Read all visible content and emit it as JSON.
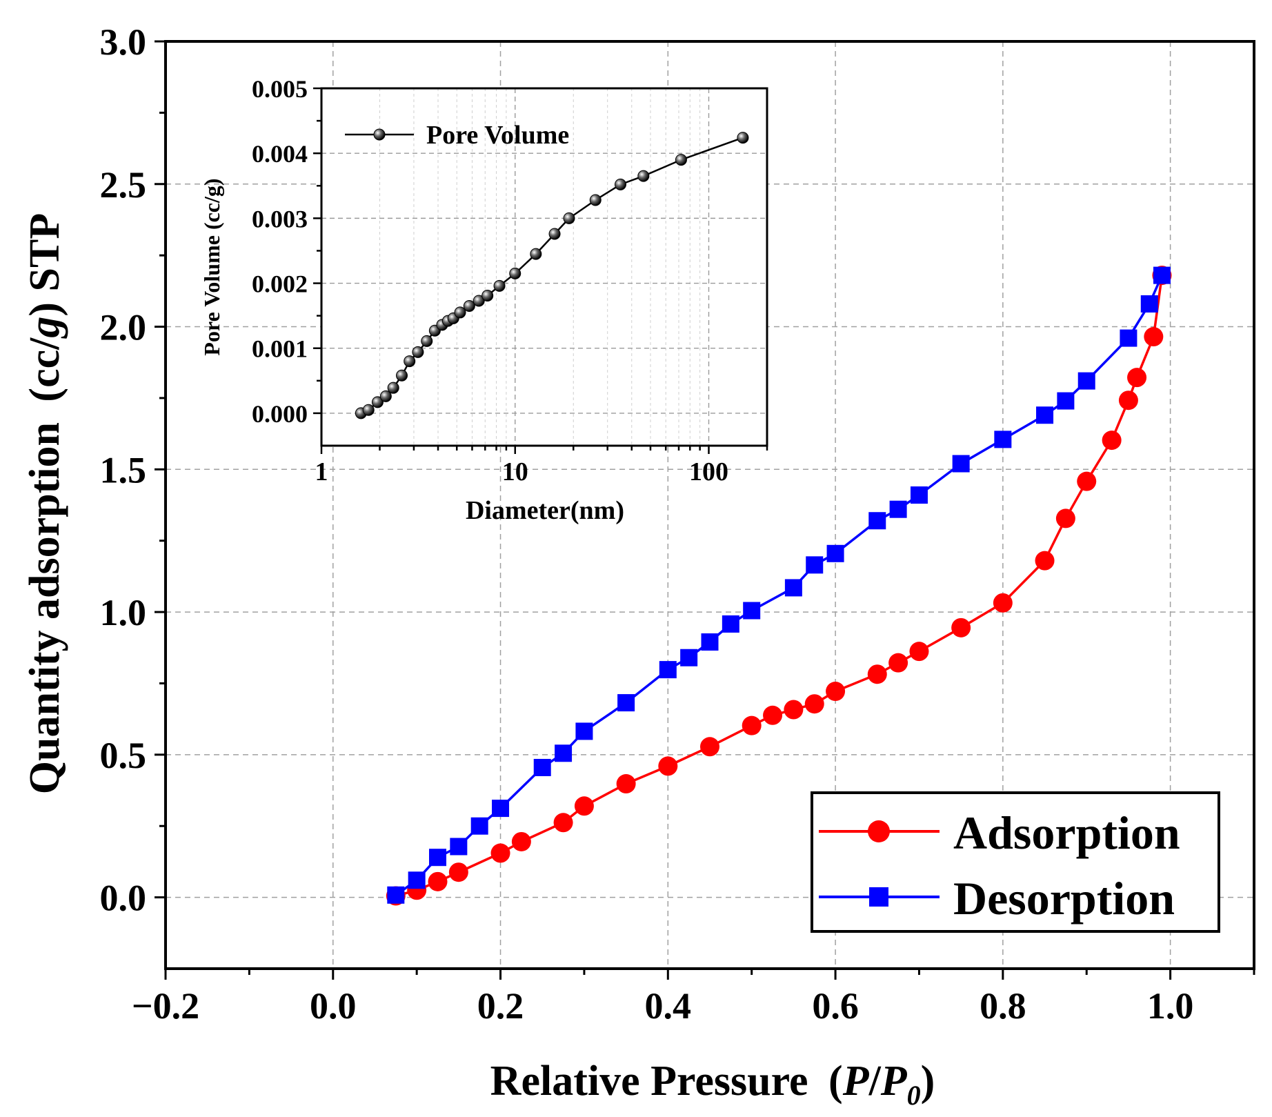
{
  "chart_data": [
    {
      "type": "line",
      "xlabel": "Relative Pressure",
      "xlabel_math": {
        "open": "(",
        "p": "P",
        "slash": "/",
        "p0": "P",
        "sub": "0",
        "close": ")"
      },
      "ylabel": "Quantity adsorption",
      "ylabel_math": {
        "open": "(cc/",
        "g": "g",
        "close": ") STP"
      },
      "xlim": [
        -0.2,
        1.1
      ],
      "ylim": [
        -0.25,
        3.0
      ],
      "grid": true,
      "xticks": [
        -0.2,
        0.0,
        0.2,
        0.4,
        0.6,
        0.8,
        1.0
      ],
      "xtick_labels": [
        "−0.2",
        "0.0",
        "0.2",
        "0.4",
        "0.6",
        "0.8",
        "1.0"
      ],
      "yticks": [
        0.0,
        0.5,
        1.0,
        1.5,
        2.0,
        2.5,
        3.0
      ],
      "ytick_labels": [
        "0.0",
        "0.5",
        "1.0",
        "1.5",
        "2.0",
        "2.5",
        "3.0"
      ],
      "legend_position": "bottom-right",
      "series": [
        {
          "name": "Adsorption",
          "color": "#ff0000",
          "marker": "circle",
          "x": [
            0.075,
            0.1,
            0.125,
            0.15,
            0.2,
            0.225,
            0.275,
            0.3,
            0.35,
            0.4,
            0.45,
            0.5,
            0.525,
            0.55,
            0.575,
            0.6,
            0.65,
            0.675,
            0.7,
            0.75,
            0.8,
            0.85,
            0.875,
            0.9,
            0.93,
            0.95,
            0.96,
            0.98,
            0.99
          ],
          "y": [
            0.005,
            0.025,
            0.055,
            0.088,
            0.155,
            0.195,
            0.262,
            0.32,
            0.398,
            0.46,
            0.528,
            0.602,
            0.638,
            0.658,
            0.678,
            0.722,
            0.782,
            0.822,
            0.862,
            0.945,
            1.032,
            1.18,
            1.328,
            1.458,
            1.602,
            1.742,
            1.822,
            1.965,
            2.18
          ]
        },
        {
          "name": "Desorption",
          "color": "#0000ff",
          "marker": "square",
          "x": [
            0.075,
            0.1,
            0.125,
            0.15,
            0.175,
            0.2,
            0.25,
            0.275,
            0.3,
            0.35,
            0.4,
            0.425,
            0.45,
            0.475,
            0.5,
            0.55,
            0.575,
            0.6,
            0.65,
            0.675,
            0.7,
            0.75,
            0.8,
            0.85,
            0.875,
            0.9,
            0.95,
            0.975,
            0.99
          ],
          "y": [
            0.008,
            0.06,
            0.14,
            0.178,
            0.25,
            0.312,
            0.455,
            0.505,
            0.582,
            0.682,
            0.798,
            0.84,
            0.895,
            0.958,
            1.005,
            1.085,
            1.165,
            1.205,
            1.32,
            1.36,
            1.41,
            1.52,
            1.605,
            1.69,
            1.74,
            1.81,
            1.96,
            2.08,
            2.18
          ]
        }
      ]
    },
    {
      "type": "line",
      "xlabel": "Diameter(nm)",
      "ylabel": "Pore Volume (cc/g)",
      "xscale": "log",
      "xlim": [
        1,
        200
      ],
      "ylim": [
        -0.0005,
        0.005
      ],
      "grid": true,
      "xticks": [
        1,
        10,
        100
      ],
      "xtick_labels": [
        "1",
        "10",
        "100"
      ],
      "yticks": [
        0.0,
        0.001,
        0.002,
        0.003,
        0.004,
        0.005
      ],
      "ytick_labels": [
        "0.000",
        "0.001",
        "0.002",
        "0.003",
        "0.004",
        "0.005"
      ],
      "legend_position": "top-left",
      "series": [
        {
          "name": "Pore Volume",
          "color": "#000000",
          "marker": "sphere",
          "x": [
            1.6,
            1.75,
            1.95,
            2.15,
            2.35,
            2.6,
            2.85,
            3.15,
            3.5,
            3.85,
            4.2,
            4.5,
            4.8,
            5.2,
            5.8,
            6.5,
            7.2,
            8.3,
            10.0,
            12.8,
            16.0,
            19.0,
            26.0,
            35.0,
            46.0,
            72.0,
            150.0
          ],
          "y": [
            0.0,
            5e-05,
            0.00017,
            0.00026,
            0.00039,
            0.00058,
            0.0008,
            0.00094,
            0.00111,
            0.00127,
            0.00136,
            0.00142,
            0.00146,
            0.00155,
            0.00165,
            0.00173,
            0.00181,
            0.00196,
            0.00215,
            0.00245,
            0.00276,
            0.003,
            0.00328,
            0.00352,
            0.00365,
            0.0039,
            0.00424
          ]
        }
      ]
    }
  ]
}
